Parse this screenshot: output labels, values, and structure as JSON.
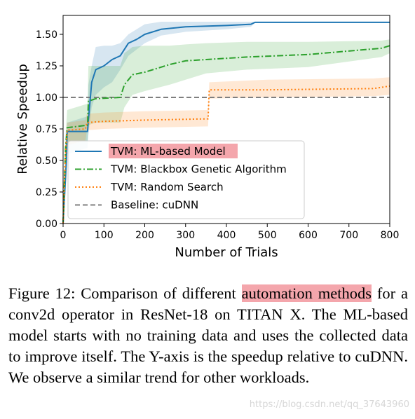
{
  "chart_data": {
    "type": "line",
    "xlabel": "Number of Trials",
    "ylabel": "Relative Speedup",
    "xlim": [
      0,
      800
    ],
    "ylim": [
      0,
      1.65
    ],
    "xticks": [
      "0",
      "100",
      "200",
      "300",
      "400",
      "500",
      "600",
      "700",
      "800"
    ],
    "yticks": [
      "0.00",
      "0.25",
      "0.50",
      "0.75",
      "1.00",
      "1.25",
      "1.50"
    ],
    "xtick_values": [
      0,
      100,
      200,
      300,
      400,
      500,
      600,
      700,
      800
    ],
    "ytick_values": [
      0,
      0.25,
      0.5,
      0.75,
      1.0,
      1.25,
      1.5
    ],
    "grid": false,
    "legend_position": "lower-left",
    "series": [
      {
        "name": "TVM: ML-based Model",
        "color": "#1f77b4",
        "style": "solid",
        "highlighted": true,
        "x": [
          0,
          8,
          10,
          60,
          62,
          70,
          80,
          100,
          120,
          140,
          160,
          180,
          200,
          240,
          300,
          400,
          460,
          470,
          800
        ],
        "y": [
          0.0,
          0.5,
          0.73,
          0.73,
          0.82,
          1.12,
          1.22,
          1.25,
          1.3,
          1.33,
          1.43,
          1.46,
          1.5,
          1.54,
          1.56,
          1.57,
          1.58,
          1.595,
          1.595
        ],
        "band_upper": [
          0.1,
          0.6,
          0.8,
          0.85,
          1.1,
          1.25,
          1.4,
          1.41,
          1.41,
          1.43,
          1.5,
          1.54,
          1.58,
          1.6,
          1.6,
          1.6,
          1.6,
          1.6,
          1.6
        ],
        "band_lower": [
          0.0,
          0.35,
          0.55,
          0.6,
          0.7,
          0.92,
          1.02,
          1.08,
          1.12,
          1.22,
          1.33,
          1.38,
          1.43,
          1.49,
          1.52,
          1.54,
          1.56,
          1.59,
          1.59
        ]
      },
      {
        "name": "TVM: Blackbox Genetic Algorithm",
        "color": "#2ca02c",
        "style": "dashdot",
        "x": [
          0,
          6,
          10,
          60,
          62,
          80,
          140,
          150,
          170,
          200,
          260,
          300,
          350,
          450,
          600,
          780,
          800
        ],
        "y": [
          0.0,
          0.6,
          0.76,
          0.78,
          0.97,
          0.99,
          1.0,
          1.1,
          1.18,
          1.2,
          1.26,
          1.29,
          1.3,
          1.32,
          1.34,
          1.39,
          1.41
        ],
        "band_upper": [
          0.1,
          0.7,
          0.9,
          0.95,
          1.25,
          1.25,
          1.25,
          1.35,
          1.4,
          1.41,
          1.41,
          1.42,
          1.43,
          1.44,
          1.44,
          1.45,
          1.46
        ],
        "band_lower": [
          0.0,
          0.5,
          0.65,
          0.65,
          0.78,
          0.8,
          0.8,
          0.92,
          1.02,
          1.05,
          1.1,
          1.14,
          1.19,
          1.22,
          1.24,
          1.32,
          1.35
        ]
      },
      {
        "name": "TVM: Random Search",
        "color": "#ff7f0e",
        "style": "dotted",
        "x": [
          0,
          6,
          10,
          55,
          58,
          100,
          200,
          355,
          358,
          500,
          760,
          800
        ],
        "y": [
          0.0,
          0.55,
          0.74,
          0.75,
          0.8,
          0.81,
          0.82,
          0.83,
          1.06,
          1.06,
          1.07,
          1.09
        ],
        "band_upper": [
          0.1,
          0.65,
          0.8,
          0.82,
          0.87,
          0.88,
          0.89,
          0.9,
          1.12,
          1.14,
          1.15,
          1.16
        ],
        "band_lower": [
          0.0,
          0.45,
          0.62,
          0.66,
          0.74,
          0.75,
          0.76,
          0.77,
          0.99,
          1.0,
          1.01,
          1.02
        ]
      },
      {
        "name": "Baseline: cuDNN",
        "color": "#7f7f7f",
        "style": "dashed",
        "x": [
          0,
          800
        ],
        "y": [
          1.0,
          1.0
        ]
      }
    ]
  },
  "caption": {
    "label": "Figure 12:",
    "before_highlight": "Comparison of different",
    "highlight": "automation methods",
    "after_highlight": "for a conv2d operator in ResNet-18 on TITAN X. The ML-based model starts with no training data and uses the collected data to improve itself.  The Y-axis is the speedup relative to cuDNN. We observe a similar trend for other workloads."
  },
  "watermark": "https://blog.csdn.net/qq_37643960"
}
